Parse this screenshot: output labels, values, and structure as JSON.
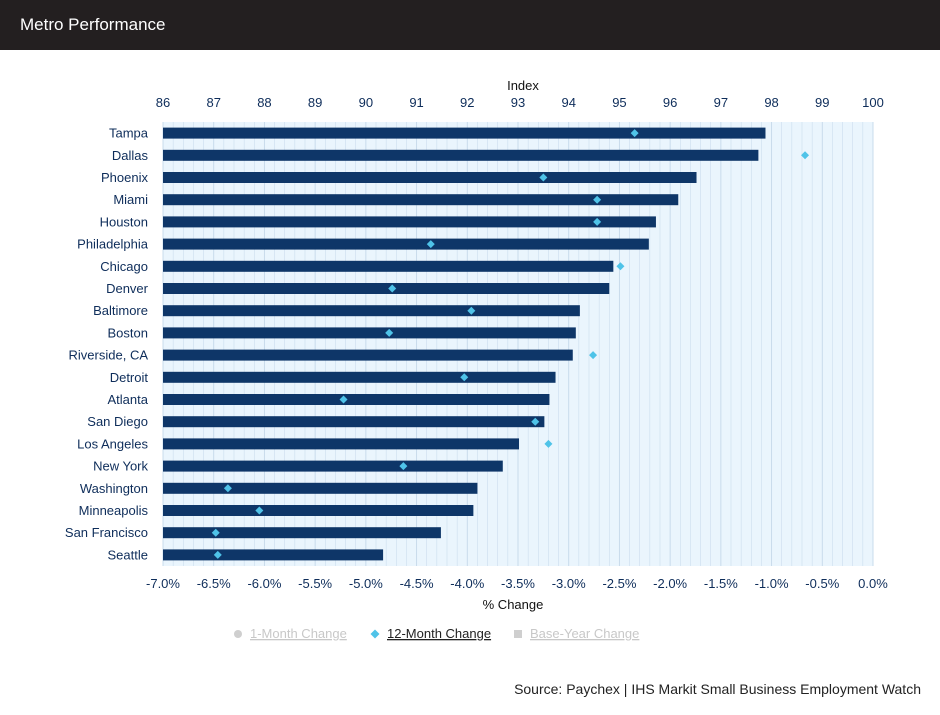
{
  "header": {
    "title": "Metro Performance"
  },
  "source": "Source: Paychex | IHS Markit Small Business Employment Watch",
  "colors": {
    "bar": "#0e3668",
    "diamond": "#4fc3e8",
    "plot_bg": "#eaf5fd",
    "grid": "#c5d9ea",
    "text": "#0e2d5a",
    "header_bg": "#231f20"
  },
  "chart_data": {
    "type": "bar",
    "orientation": "horizontal",
    "categories": [
      "Tampa",
      "Dallas",
      "Phoenix",
      "Miami",
      "Houston",
      "Philadelphia",
      "Chicago",
      "Denver",
      "Baltimore",
      "Boston",
      "Riverside, CA",
      "Detroit",
      "Atlanta",
      "San Diego",
      "Los Angeles",
      "New York",
      "Washington",
      "Minneapolis",
      "San Francisco",
      "Seattle"
    ],
    "series": [
      {
        "name": "Index",
        "axis": "top",
        "values": [
          97.88,
          97.74,
          96.52,
          96.16,
          95.72,
          95.58,
          94.88,
          94.8,
          94.22,
          94.14,
          94.08,
          93.74,
          93.62,
          93.52,
          93.02,
          92.7,
          92.2,
          92.12,
          91.48,
          90.34
        ]
      },
      {
        "name": "12-Month Change",
        "axis": "bottom",
        "values": [
          -2.35,
          -0.67,
          -3.25,
          -2.72,
          -2.72,
          -4.36,
          -2.49,
          -4.74,
          -3.96,
          -4.77,
          -2.76,
          -4.03,
          -5.22,
          -3.33,
          -3.2,
          -4.63,
          -6.36,
          -6.05,
          -6.48,
          -6.46
        ]
      }
    ],
    "top_axis": {
      "label": "Index",
      "min": 86,
      "max": 100,
      "ticks": [
        "86",
        "87",
        "88",
        "89",
        "90",
        "91",
        "92",
        "93",
        "94",
        "95",
        "96",
        "97",
        "98",
        "99",
        "100"
      ]
    },
    "bottom_axis": {
      "label": "% Change",
      "min": -7.0,
      "max": 0.0,
      "ticks": [
        "-7.0%",
        "-6.5%",
        "-6.0%",
        "-5.5%",
        "-5.0%",
        "-4.5%",
        "-4.0%",
        "-3.5%",
        "-3.0%",
        "-2.5%",
        "-2.0%",
        "-1.5%",
        "-1.0%",
        "-0.5%",
        "0.0%"
      ]
    },
    "legend": {
      "placement": "bottom",
      "items": [
        {
          "label": "1-Month Change",
          "marker": "circle",
          "active": false
        },
        {
          "label": "12-Month Change",
          "marker": "diamond",
          "active": true
        },
        {
          "label": "Base-Year Change",
          "marker": "square",
          "active": false
        }
      ]
    },
    "grid": true
  }
}
